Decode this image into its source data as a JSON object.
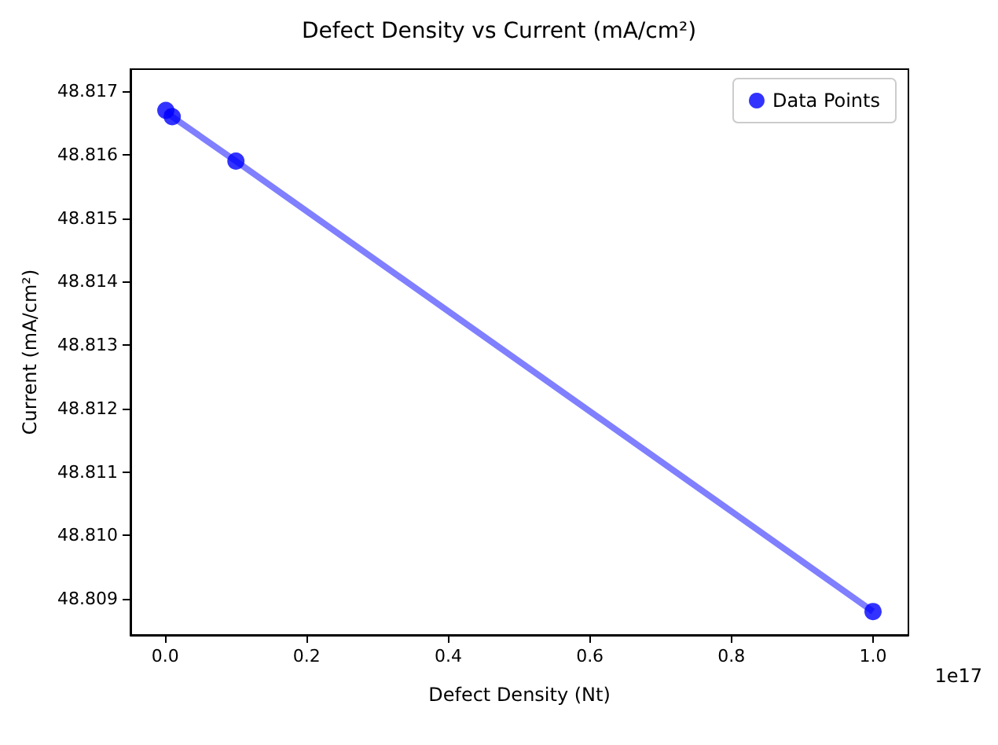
{
  "chart_data": {
    "type": "scatter",
    "title": "Defect Density vs Current (mA/cm²)",
    "xlabel": "Defect Density (Nt)",
    "ylabel": "Current (mA/cm²)",
    "series": [
      {
        "type": "line",
        "marker": "none",
        "color": "#7f7fff",
        "x": [
          0.001,
          0.01,
          0.1,
          1
        ],
        "values": [
          48.8167,
          48.8166,
          48.8159,
          48.8088
        ]
      },
      {
        "name": "Data Points",
        "color": "#0000ff",
        "x": [
          0.001,
          0.01,
          0.1,
          1
        ],
        "values": [
          48.8167,
          48.8166,
          48.8159,
          48.8088
        ]
      }
    ],
    "xlim": [
      -0.049,
      1.05
    ],
    "xticks": [
      {
        "value": 0,
        "label": "0.0"
      },
      0.2,
      0.4,
      0.6,
      0.8,
      {
        "value": 1,
        "label": "1.0"
      }
    ],
    "ylim": [
      48.80843,
      48.81735
    ],
    "yticks": [
      {
        "value": 48.809,
        "label": "48.809"
      },
      {
        "value": 48.81,
        "label": "48.810"
      },
      {
        "value": 48.811,
        "label": "48.811"
      },
      {
        "value": 48.812,
        "label": "48.812"
      },
      {
        "value": 48.813,
        "label": "48.813"
      },
      {
        "value": 48.814,
        "label": "48.814"
      },
      {
        "value": 48.815,
        "label": "48.815"
      },
      {
        "value": 48.816,
        "label": "48.816"
      },
      {
        "value": 48.817,
        "label": "48.817"
      }
    ],
    "annotations": [
      "1e17"
    ],
    "legend": "top right",
    "grid": false,
    "marker": "circle"
  }
}
